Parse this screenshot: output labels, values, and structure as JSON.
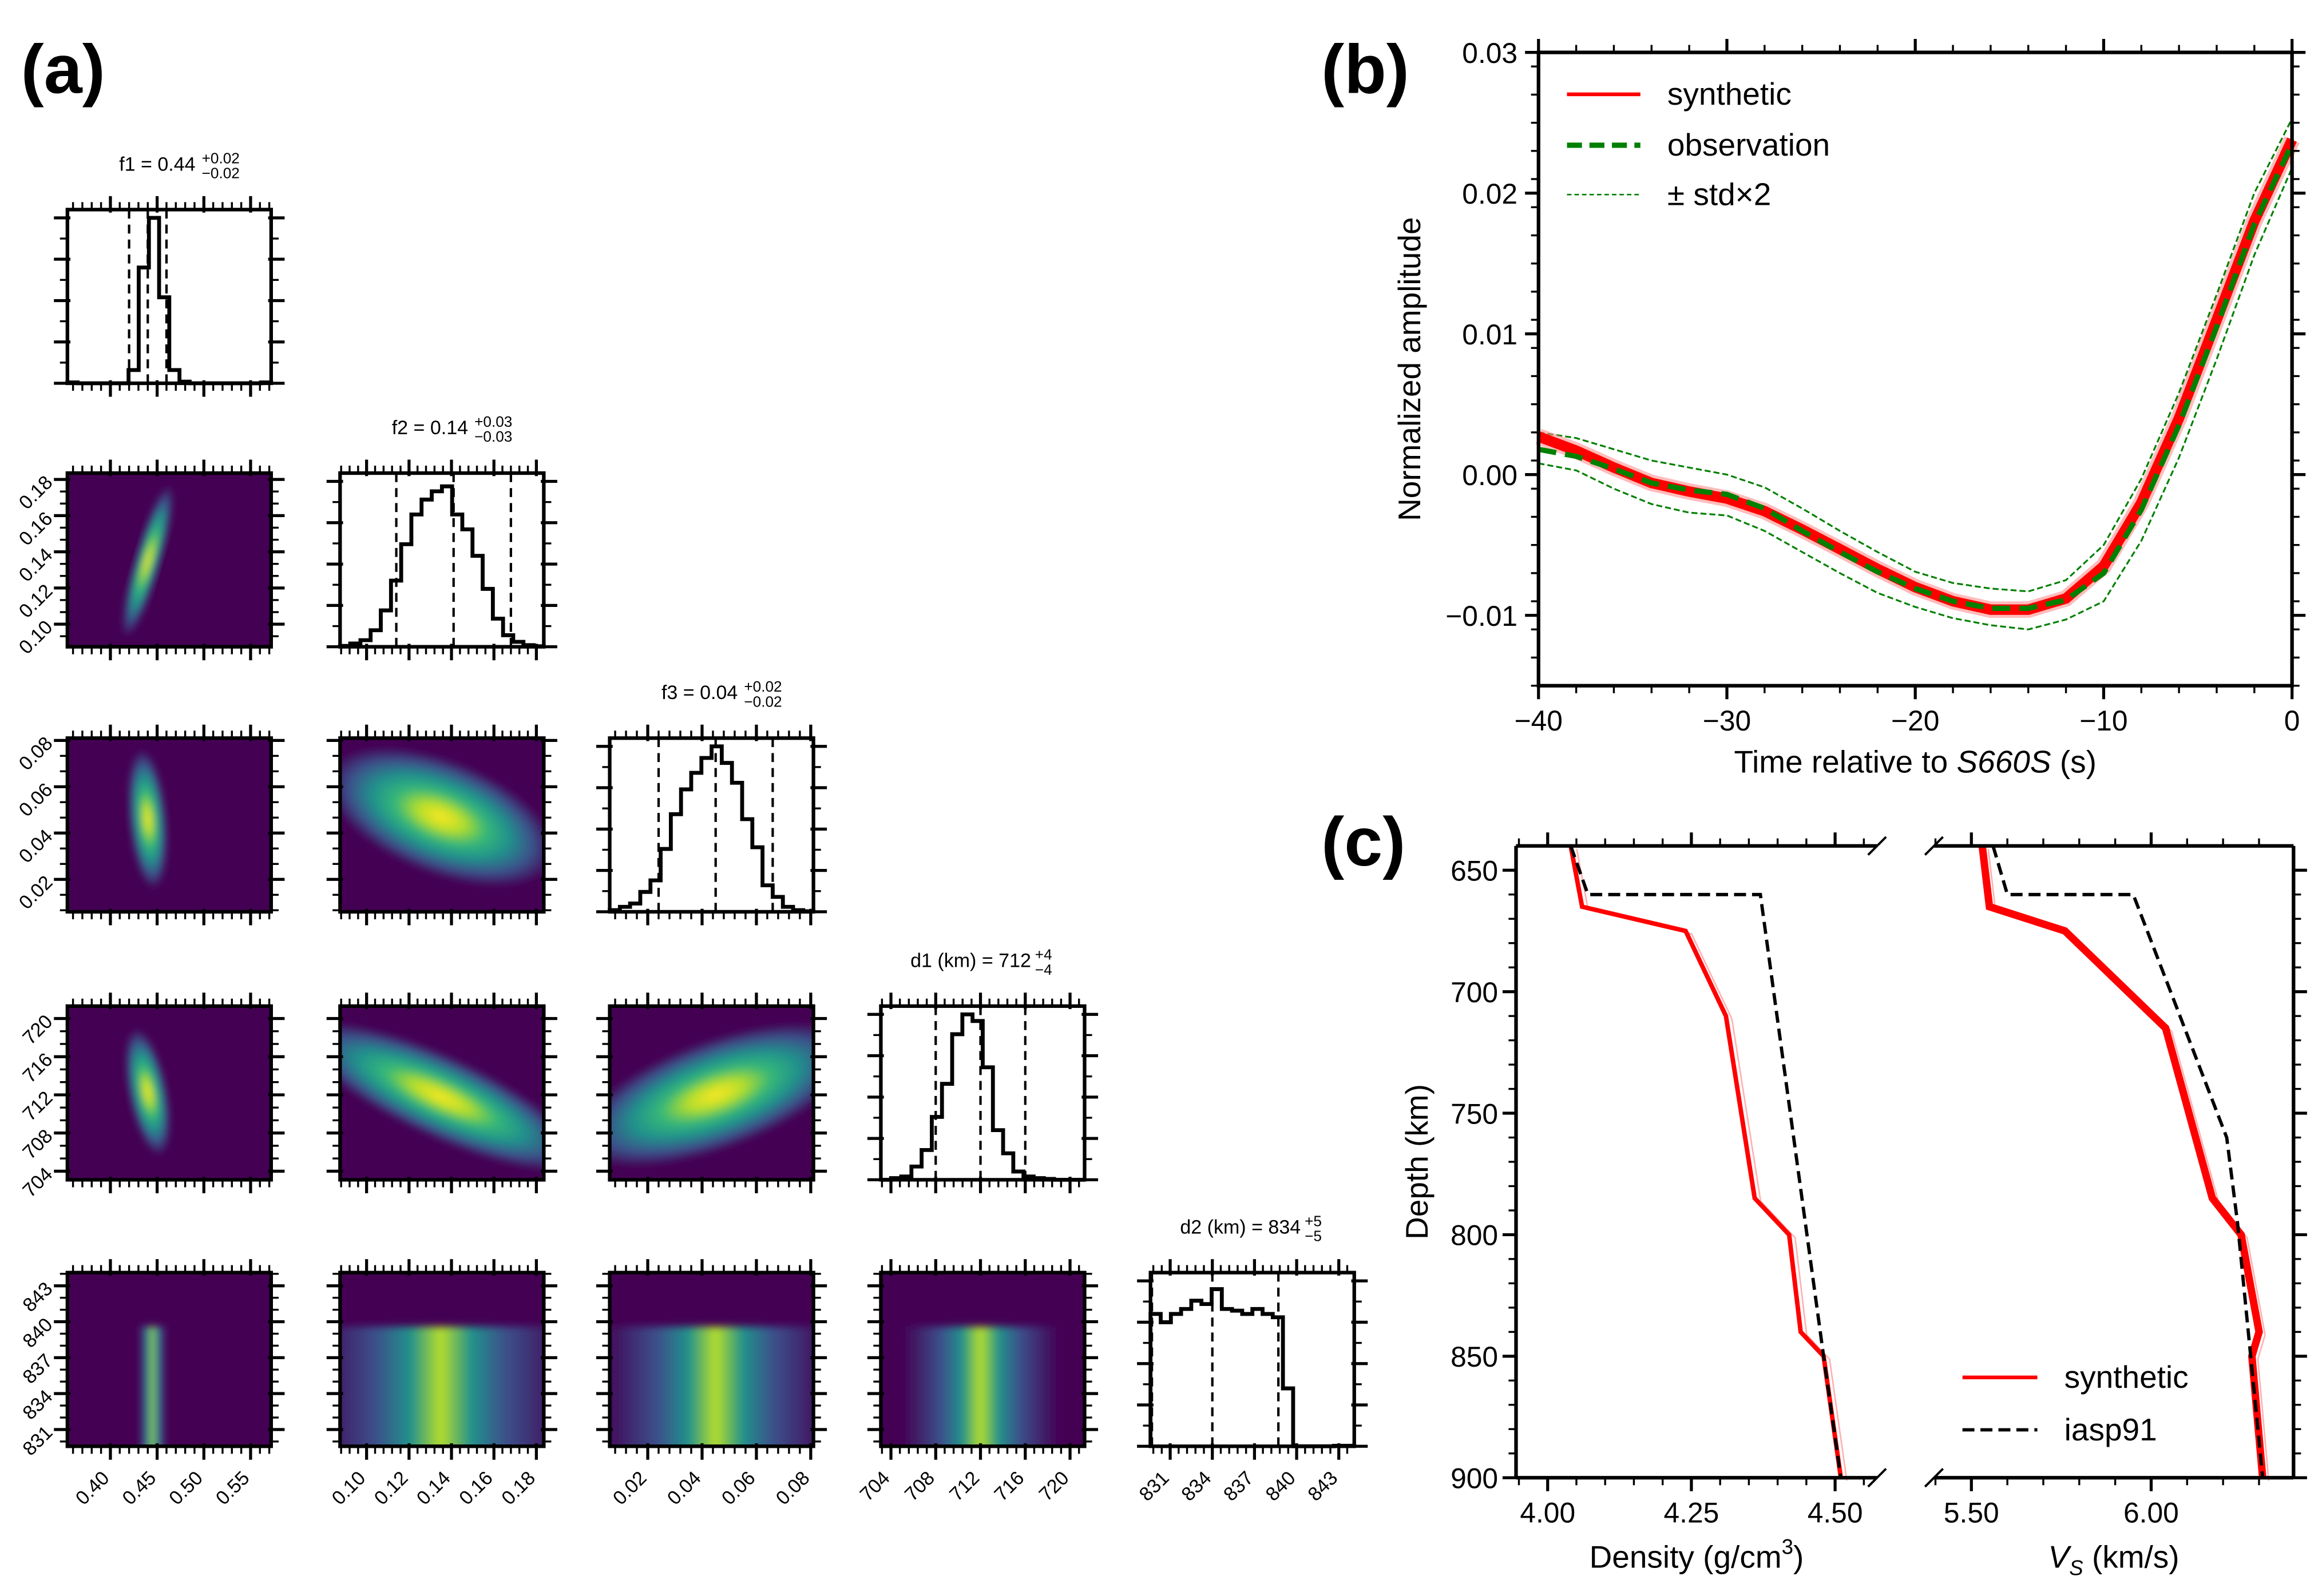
{
  "panel_labels": {
    "a": "(a)",
    "b": "(b)",
    "c": "(c)"
  },
  "chart_data": [
    {
      "panel": "a",
      "type": "corner",
      "colormap": "viridis",
      "params": [
        {
          "id": "f1",
          "title_main": "f1 = 0.44",
          "title_plus": "+0.02",
          "title_minus": "−0.02",
          "range": [
            0.354,
            0.572
          ],
          "ticks": [
            "0.40",
            "0.45",
            "0.50",
            "0.55"
          ],
          "tick_values": [
            0.4,
            0.45,
            0.5,
            0.55
          ],
          "quantiles": [
            0.42,
            0.44,
            0.46
          ],
          "hist": [
            0.005,
            0,
            0,
            0,
            0,
            0,
            0.08,
            0.7,
            1.0,
            0.52,
            0.08,
            0.01,
            0,
            0,
            0,
            0,
            0,
            0,
            0,
            0.005
          ]
        },
        {
          "id": "f2",
          "title_main": "f2 = 0.14",
          "title_plus": "+0.03",
          "title_minus": "−0.03",
          "range": [
            0.0875,
            0.1835
          ],
          "ticks": [
            "0.10",
            "0.12",
            "0.14",
            "0.16",
            "0.18"
          ],
          "tick_values": [
            0.1,
            0.12,
            0.14,
            0.16,
            0.18
          ],
          "quantiles": [
            0.114,
            0.141,
            0.168
          ],
          "hist": [
            0.005,
            0.02,
            0.04,
            0.1,
            0.22,
            0.4,
            0.62,
            0.8,
            0.89,
            0.94,
            0.97,
            0.8,
            0.71,
            0.55,
            0.35,
            0.17,
            0.07,
            0.03,
            0.01,
            0.003
          ]
        },
        {
          "id": "f3",
          "title_main": "f3 = 0.04",
          "title_plus": "+0.02",
          "title_minus": "−0.02",
          "range": [
            0.006,
            0.081
          ],
          "ticks": [
            "0.02",
            "0.04",
            "0.06",
            "0.08"
          ],
          "tick_values": [
            0.02,
            0.04,
            0.06,
            0.08
          ],
          "quantiles": [
            0.024,
            0.045,
            0.066
          ],
          "hist": [
            0.01,
            0.03,
            0.05,
            0.12,
            0.19,
            0.38,
            0.59,
            0.74,
            0.84,
            0.93,
            1.0,
            0.9,
            0.78,
            0.56,
            0.39,
            0.16,
            0.09,
            0.03,
            0.01,
            0.003
          ]
        },
        {
          "id": "d1",
          "title_main": "d1 (km) = 712",
          "title_plus": "+4",
          "title_minus": "−4",
          "range": [
            703.1,
            721.3
          ],
          "ticks": [
            "704",
            "708",
            "712",
            "716",
            "720"
          ],
          "tick_values": [
            704,
            708,
            712,
            716,
            720
          ],
          "quantiles": [
            708,
            712,
            716
          ],
          "hist": [
            0,
            0.01,
            0.02,
            0.08,
            0.18,
            0.38,
            0.58,
            0.88,
            1.0,
            0.96,
            0.68,
            0.3,
            0.16,
            0.05,
            0.02,
            0.01,
            0.005,
            0,
            0,
            0
          ]
        },
        {
          "id": "d2",
          "title_main": "d2 (km) = 834",
          "title_plus": "+5",
          "title_minus": "−5",
          "range": [
            829.6,
            844.1
          ],
          "ticks": [
            "831",
            "834",
            "837",
            "840",
            "843"
          ],
          "tick_values": [
            831,
            834,
            837,
            840,
            843
          ],
          "quantiles": [
            829.7,
            834,
            838.7
          ],
          "hist": [
            0.8,
            0.75,
            0.8,
            0.83,
            0.88,
            0.86,
            0.95,
            0.83,
            0.82,
            0.8,
            0.83,
            0.8,
            0.78,
            0.35,
            0,
            0,
            0,
            0,
            0.003,
            0.003
          ]
        }
      ],
      "densities": [
        {
          "x": "f1",
          "y": "f2",
          "cx": 0.44,
          "cy": 0.135,
          "sx": 0.009,
          "sy": 0.014,
          "rho": 0.85
        },
        {
          "x": "f1",
          "y": "f3",
          "cx": 0.44,
          "cy": 0.046,
          "sx": 0.007,
          "sy": 0.01,
          "rho": -0.3
        },
        {
          "x": "f2",
          "y": "f3",
          "cx": 0.135,
          "cy": 0.047,
          "sx": 0.018,
          "sy": 0.01,
          "rho": -0.5
        },
        {
          "x": "f1",
          "y": "d1",
          "cx": 0.44,
          "cy": 712.3,
          "sx": 0.008,
          "sy": 2.2,
          "rho": -0.5
        },
        {
          "x": "f2",
          "y": "d1",
          "cx": 0.135,
          "cy": 711.8,
          "sx": 0.022,
          "sy": 2.6,
          "rho": -0.8
        },
        {
          "x": "f3",
          "y": "d1",
          "cx": 0.045,
          "cy": 712.0,
          "sx": 0.017,
          "sy": 2.5,
          "rho": 0.6
        },
        {
          "x": "f1",
          "y": "d2",
          "cx": 0.445,
          "uniform_y": [
            829.6,
            839.6
          ],
          "sx": 0.005
        },
        {
          "x": "f2",
          "y": "d2",
          "cx": 0.135,
          "uniform_y": [
            829.6,
            839.6
          ],
          "sx": 0.02
        },
        {
          "x": "f3",
          "y": "d2",
          "cx": 0.045,
          "uniform_y": [
            829.6,
            839.6
          ],
          "sx": 0.014
        },
        {
          "x": "d1",
          "y": "d2",
          "cx": 712,
          "uniform_y": [
            829.6,
            839.6
          ],
          "sx": 2.3
        }
      ]
    },
    {
      "panel": "b",
      "type": "line",
      "xlabel_pre": "Time relative to ",
      "xlabel_italic": "S660S",
      "xlabel_post": " (s)",
      "ylabel": "Normalized amplitude",
      "xlim": [
        -40,
        0
      ],
      "ylim": [
        -0.015,
        0.03
      ],
      "xticks": [
        "−40",
        "−30",
        "−20",
        "−10",
        "0"
      ],
      "xtick_values": [
        -40,
        -30,
        -20,
        -10,
        0
      ],
      "yticks": [
        "−0.01",
        "0.00",
        "0.01",
        "0.02",
        "0.03"
      ],
      "ytick_values": [
        -0.01,
        0,
        0.01,
        0.02,
        0.03
      ],
      "legend": {
        "position": "upper-left",
        "entries": [
          "synthetic",
          "observation",
          "± std×2"
        ]
      },
      "colors": {
        "synthetic": "#ff0000",
        "observation": "#008000",
        "std": "#008000"
      },
      "x": [
        -40,
        -38,
        -36,
        -34,
        -32,
        -30,
        -28,
        -26,
        -24,
        -22,
        -20,
        -18,
        -16,
        -14,
        -12,
        -10,
        -8,
        -6,
        -4,
        -2,
        0
      ],
      "series": [
        {
          "name": "synthetic",
          "values": [
            0.0027,
            0.0017,
            0.0005,
            -0.0006,
            -0.0012,
            -0.0017,
            -0.0026,
            -0.0039,
            -0.0053,
            -0.0067,
            -0.008,
            -0.009,
            -0.0096,
            -0.0096,
            -0.0088,
            -0.0065,
            -0.002,
            0.004,
            0.011,
            0.018,
            0.0238
          ]
        },
        {
          "name": "observation",
          "values": [
            0.0018,
            0.0013,
            0.0004,
            -0.0006,
            -0.0011,
            -0.0014,
            -0.0024,
            -0.004,
            -0.0055,
            -0.0069,
            -0.0081,
            -0.009,
            -0.0095,
            -0.0095,
            -0.0089,
            -0.007,
            -0.0025,
            0.0035,
            0.0105,
            0.0178,
            0.0235
          ]
        },
        {
          "name": "± std×2 upper",
          "values": [
            0.003,
            0.0026,
            0.0018,
            0.001,
            0.0005,
            0.0,
            -0.0009,
            -0.0024,
            -0.004,
            -0.0055,
            -0.0069,
            -0.0077,
            -0.0081,
            -0.0083,
            -0.0075,
            -0.005,
            -0.0003,
            0.0058,
            0.0128,
            0.02,
            0.0253
          ]
        },
        {
          "name": "± std×2 lower",
          "values": [
            0.0008,
            0.0003,
            -0.001,
            -0.0021,
            -0.0027,
            -0.0029,
            -0.004,
            -0.0055,
            -0.007,
            -0.0084,
            -0.0094,
            -0.0102,
            -0.0107,
            -0.011,
            -0.0103,
            -0.009,
            -0.0047,
            0.0012,
            0.0082,
            0.0156,
            0.0218
          ]
        }
      ]
    },
    {
      "panel": "c",
      "type": "line",
      "ylabel": "Depth (km)",
      "ylim": [
        640,
        900
      ],
      "yticks": [
        "650",
        "700",
        "750",
        "800",
        "850",
        "900"
      ],
      "ytick_values": [
        650,
        700,
        750,
        800,
        850,
        900
      ],
      "legend": {
        "position": "lower-right",
        "entries": [
          "synthetic",
          "iasp91"
        ]
      },
      "colors": {
        "synthetic": "#ff0000",
        "iasp91": "#000000"
      },
      "subplots": [
        {
          "id": "density",
          "xlabel_pre": "Density (g/cm",
          "xlabel_sup": "3",
          "xlabel_post": ")",
          "xlim": [
            3.945,
            4.573
          ],
          "xticks": [
            "4.00",
            "4.25",
            "4.50"
          ],
          "xtick_values": [
            4.0,
            4.25,
            4.5
          ],
          "synthetic": {
            "x": [
              4.04,
              4.06,
              4.24,
              4.31,
              4.36,
              4.42,
              4.44,
              4.48,
              4.51
            ],
            "depth": [
              640,
              665,
              675,
              710,
              785,
              800,
              840,
              850,
              900
            ]
          },
          "iasp91": {
            "x": [
              4.04,
              4.07,
              4.37,
              4.48,
              4.51
            ],
            "depth": [
              640,
              660,
              660,
              850,
              900
            ]
          }
        },
        {
          "id": "vs",
          "xlabel_italic": "V",
          "xlabel_sub": "S",
          "xlabel_post": " (km/s)",
          "xlim": [
            5.396,
            6.396
          ],
          "xticks": [
            "5.50",
            "6.00"
          ],
          "xtick_values": [
            5.5,
            6.0
          ],
          "synthetic": {
            "x": [
              5.53,
              5.55,
              5.76,
              6.04,
              6.17,
              6.25,
              6.3,
              6.28,
              6.31
            ],
            "depth": [
              640,
              665,
              675,
              715,
              785,
              800,
              840,
              850,
              900
            ]
          },
          "iasp91": {
            "x": [
              5.56,
              5.6,
              5.95,
              6.21,
              6.24,
              6.31
            ],
            "depth": [
              640,
              660,
              660,
              760,
              795,
              900
            ]
          }
        }
      ]
    }
  ]
}
